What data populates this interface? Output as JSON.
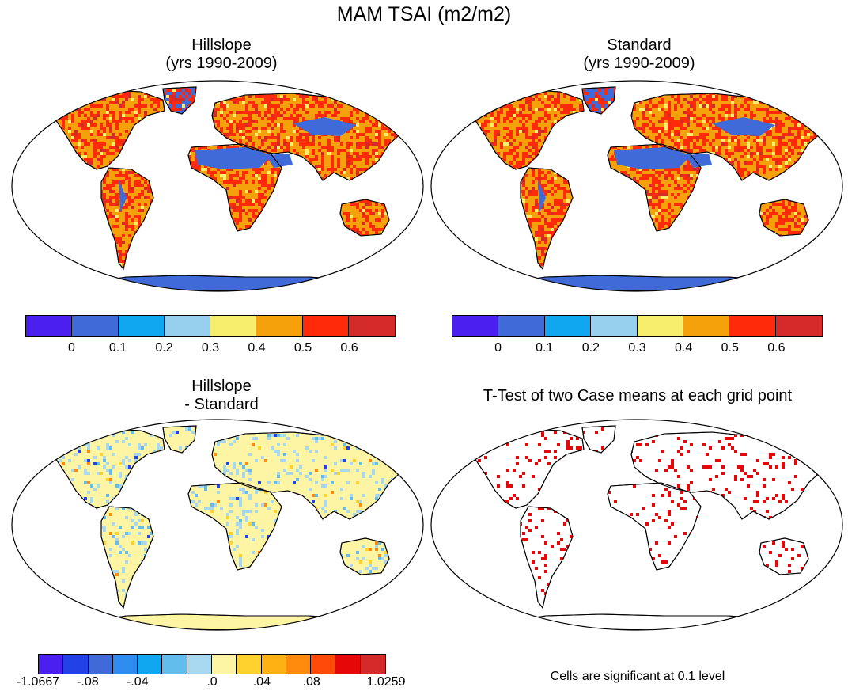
{
  "title": "MAM TSAI (m2/m2)",
  "panels": [
    {
      "title_line1": "Hillslope",
      "title_line2": "(yrs 1990-2009)"
    },
    {
      "title_line1": "Standard",
      "title_line2": "(yrs 1990-2009)"
    },
    {
      "title_line1": "Hillslope",
      "title_line2": "- Standard"
    },
    {
      "title_line1": "T-Test of two Case means at each grid point",
      "title_line2": ""
    }
  ],
  "colorbar_top": {
    "colors": [
      "#4a1ff0",
      "#3f6ad8",
      "#10a6f0",
      "#96d0ee",
      "#f8ee6e",
      "#f5a10c",
      "#ff2a0a",
      "#d42a2a"
    ],
    "labels": [
      "0",
      "0.1",
      "0.2",
      "0.3",
      "0.4",
      "0.5",
      "0.6"
    ]
  },
  "colorbar_diff": {
    "colors": [
      "#4a1ff0",
      "#2242e8",
      "#3f6ad8",
      "#2e8cf0",
      "#10a6f0",
      "#62bcee",
      "#a8d8f0",
      "#fdf4a4",
      "#ffd22e",
      "#ffb114",
      "#ff8a0c",
      "#ff4a0a",
      "#e60808",
      "#d42a2a"
    ],
    "labels": [
      "-1.0667",
      "-.08",
      "-.04",
      ".0",
      ".04",
      ".08",
      "1.0259"
    ]
  },
  "note": "Cells are significant at 0.1 level",
  "fill_colors": {
    "ocean": "#ffffff",
    "desert": "#3f6ad8",
    "land_main": "#f5a10c",
    "land_hot": "#ff2a0a",
    "ice": "#3f6ad8",
    "diff_land": "#fdf4a4",
    "sig": "#e60808"
  }
}
